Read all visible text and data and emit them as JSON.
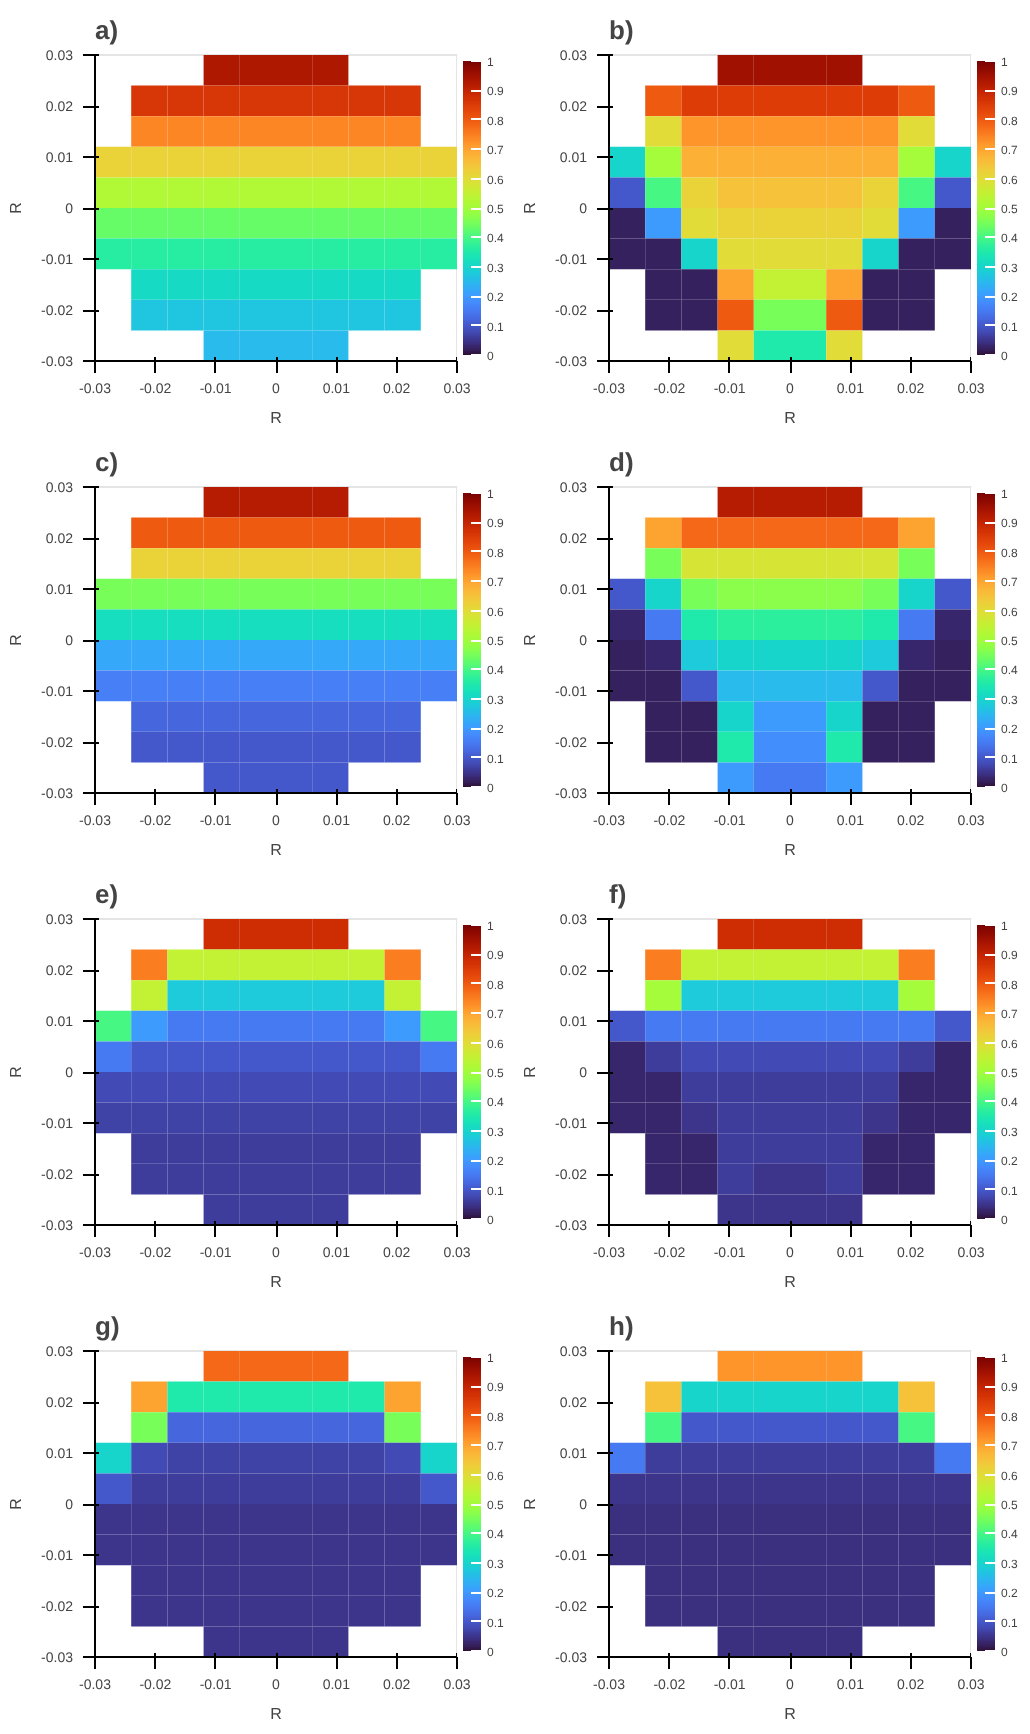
{
  "chart_data": [
    {
      "type": "heatmap",
      "title": "a)",
      "xlabel": "R",
      "ylabel": "R",
      "xlim": [
        -0.03,
        0.03
      ],
      "ylim": [
        -0.03,
        0.03
      ],
      "xticks": [
        -0.03,
        -0.02,
        -0.01,
        0,
        0.01,
        0.02,
        0.03
      ],
      "yticks": [
        -0.03,
        -0.02,
        -0.01,
        0,
        0.01,
        0.02,
        0.03
      ],
      "clim": [
        0,
        1
      ],
      "cticks": [
        0,
        0.1,
        0.2,
        0.3,
        0.4,
        0.5,
        0.6,
        0.7,
        0.8,
        0.9,
        1
      ],
      "grid": false,
      "cells": [
        [
          null,
          null,
          null,
          0.93,
          0.93,
          0.93,
          0.93,
          null,
          null,
          null
        ],
        [
          null,
          0.86,
          0.86,
          0.86,
          0.86,
          0.86,
          0.86,
          0.86,
          0.86,
          null
        ],
        [
          null,
          0.74,
          0.74,
          0.74,
          0.74,
          0.74,
          0.74,
          0.74,
          0.74,
          null
        ],
        [
          0.62,
          0.62,
          0.62,
          0.62,
          0.62,
          0.62,
          0.62,
          0.62,
          0.62,
          0.62
        ],
        [
          0.52,
          0.52,
          0.52,
          0.52,
          0.52,
          0.52,
          0.52,
          0.52,
          0.52,
          0.52
        ],
        [
          0.43,
          0.43,
          0.43,
          0.43,
          0.43,
          0.43,
          0.43,
          0.43,
          0.43,
          0.43
        ],
        [
          0.36,
          0.36,
          0.36,
          0.36,
          0.36,
          0.36,
          0.36,
          0.36,
          0.36,
          0.36
        ],
        [
          null,
          0.31,
          0.31,
          0.31,
          0.31,
          0.31,
          0.31,
          0.31,
          0.31,
          null
        ],
        [
          null,
          0.27,
          0.27,
          0.27,
          0.27,
          0.27,
          0.27,
          0.27,
          0.27,
          null
        ],
        [
          null,
          null,
          null,
          0.25,
          0.25,
          0.25,
          0.25,
          null,
          null,
          null
        ]
      ]
    },
    {
      "type": "heatmap",
      "title": "b)",
      "xlabel": "R",
      "ylabel": "R",
      "xlim": [
        -0.03,
        0.03
      ],
      "ylim": [
        -0.03,
        0.03
      ],
      "xticks": [
        -0.03,
        -0.02,
        -0.01,
        0,
        0.01,
        0.02,
        0.03
      ],
      "yticks": [
        -0.03,
        -0.02,
        -0.01,
        0,
        0.01,
        0.02,
        0.03
      ],
      "clim": [
        0,
        1
      ],
      "cticks": [
        0,
        0.1,
        0.2,
        0.3,
        0.4,
        0.5,
        0.6,
        0.7,
        0.8,
        0.9,
        1
      ],
      "grid": false,
      "cells": [
        [
          null,
          null,
          null,
          0.95,
          0.95,
          0.95,
          0.95,
          null,
          null,
          null
        ],
        [
          null,
          0.8,
          0.85,
          0.85,
          0.85,
          0.85,
          0.85,
          0.85,
          0.8,
          null
        ],
        [
          null,
          0.6,
          0.72,
          0.72,
          0.72,
          0.72,
          0.72,
          0.72,
          0.6,
          null
        ],
        [
          0.3,
          0.5,
          0.68,
          0.68,
          0.68,
          0.68,
          0.68,
          0.68,
          0.5,
          0.3
        ],
        [
          0.1,
          0.4,
          0.62,
          0.65,
          0.65,
          0.65,
          0.65,
          0.62,
          0.4,
          0.1
        ],
        [
          0.02,
          0.2,
          0.6,
          0.62,
          0.62,
          0.62,
          0.62,
          0.6,
          0.2,
          0.02
        ],
        [
          0.02,
          0.02,
          0.3,
          0.6,
          0.6,
          0.6,
          0.6,
          0.3,
          0.02,
          0.02
        ],
        [
          null,
          0.02,
          0.02,
          0.7,
          0.55,
          0.55,
          0.7,
          0.02,
          0.02,
          null
        ],
        [
          null,
          0.02,
          0.02,
          0.8,
          0.45,
          0.45,
          0.8,
          0.02,
          0.02,
          null
        ],
        [
          null,
          null,
          null,
          0.6,
          0.35,
          0.35,
          0.6,
          null,
          null,
          null
        ]
      ]
    },
    {
      "type": "heatmap",
      "title": "c)",
      "xlabel": "R",
      "ylabel": "R",
      "xlim": [
        -0.03,
        0.03
      ],
      "ylim": [
        -0.03,
        0.03
      ],
      "xticks": [
        -0.03,
        -0.02,
        -0.01,
        0,
        0.01,
        0.02,
        0.03
      ],
      "yticks": [
        -0.03,
        -0.02,
        -0.01,
        0,
        0.01,
        0.02,
        0.03
      ],
      "clim": [
        0,
        1
      ],
      "cticks": [
        0,
        0.1,
        0.2,
        0.3,
        0.4,
        0.5,
        0.6,
        0.7,
        0.8,
        0.9,
        1
      ],
      "grid": false,
      "cells": [
        [
          null,
          null,
          null,
          0.92,
          0.92,
          0.92,
          0.92,
          null,
          null,
          null
        ],
        [
          null,
          0.8,
          0.8,
          0.8,
          0.8,
          0.8,
          0.8,
          0.8,
          0.8,
          null
        ],
        [
          null,
          0.62,
          0.62,
          0.62,
          0.62,
          0.62,
          0.62,
          0.62,
          0.62,
          null
        ],
        [
          0.45,
          0.45,
          0.45,
          0.45,
          0.45,
          0.45,
          0.45,
          0.45,
          0.45,
          0.45
        ],
        [
          0.32,
          0.32,
          0.32,
          0.32,
          0.32,
          0.32,
          0.32,
          0.32,
          0.32,
          0.32
        ],
        [
          0.22,
          0.22,
          0.22,
          0.22,
          0.22,
          0.22,
          0.22,
          0.22,
          0.22,
          0.22
        ],
        [
          0.16,
          0.16,
          0.16,
          0.16,
          0.16,
          0.16,
          0.16,
          0.16,
          0.16,
          0.16
        ],
        [
          null,
          0.12,
          0.12,
          0.12,
          0.12,
          0.12,
          0.12,
          0.12,
          0.12,
          null
        ],
        [
          null,
          0.1,
          0.1,
          0.1,
          0.1,
          0.1,
          0.1,
          0.1,
          0.1,
          null
        ],
        [
          null,
          null,
          null,
          0.1,
          0.1,
          0.1,
          0.1,
          null,
          null,
          null
        ]
      ]
    },
    {
      "type": "heatmap",
      "title": "d)",
      "xlabel": "R",
      "ylabel": "R",
      "xlim": [
        -0.03,
        0.03
      ],
      "ylim": [
        -0.03,
        0.03
      ],
      "xticks": [
        -0.03,
        -0.02,
        -0.01,
        0,
        0.01,
        0.02,
        0.03
      ],
      "yticks": [
        -0.03,
        -0.02,
        -0.01,
        0,
        0.01,
        0.02,
        0.03
      ],
      "clim": [
        0,
        1
      ],
      "cticks": [
        0,
        0.1,
        0.2,
        0.3,
        0.4,
        0.5,
        0.6,
        0.7,
        0.8,
        0.9,
        1
      ],
      "grid": false,
      "cells": [
        [
          null,
          null,
          null,
          0.92,
          0.92,
          0.92,
          0.92,
          null,
          null,
          null
        ],
        [
          null,
          0.7,
          0.78,
          0.78,
          0.78,
          0.78,
          0.78,
          0.78,
          0.7,
          null
        ],
        [
          null,
          0.45,
          0.58,
          0.58,
          0.58,
          0.58,
          0.58,
          0.58,
          0.45,
          null
        ],
        [
          0.1,
          0.3,
          0.45,
          0.47,
          0.47,
          0.47,
          0.47,
          0.45,
          0.3,
          0.1
        ],
        [
          0.03,
          0.15,
          0.35,
          0.37,
          0.37,
          0.37,
          0.37,
          0.35,
          0.15,
          0.03
        ],
        [
          0.02,
          0.03,
          0.28,
          0.3,
          0.3,
          0.3,
          0.3,
          0.28,
          0.03,
          0.02
        ],
        [
          0.02,
          0.02,
          0.1,
          0.25,
          0.25,
          0.25,
          0.25,
          0.1,
          0.02,
          0.02
        ],
        [
          null,
          0.02,
          0.02,
          0.3,
          0.2,
          0.2,
          0.3,
          0.02,
          0.02,
          null
        ],
        [
          null,
          0.02,
          0.02,
          0.35,
          0.18,
          0.18,
          0.35,
          0.02,
          0.02,
          null
        ],
        [
          null,
          null,
          null,
          0.2,
          0.15,
          0.15,
          0.2,
          null,
          null,
          null
        ]
      ]
    },
    {
      "type": "heatmap",
      "title": "e)",
      "xlabel": "R",
      "ylabel": "R",
      "xlim": [
        -0.03,
        0.03
      ],
      "ylim": [
        -0.03,
        0.03
      ],
      "xticks": [
        -0.03,
        -0.02,
        -0.01,
        0,
        0.01,
        0.02,
        0.03
      ],
      "yticks": [
        -0.03,
        -0.02,
        -0.01,
        0,
        0.01,
        0.02,
        0.03
      ],
      "clim": [
        0,
        1
      ],
      "cticks": [
        0,
        0.1,
        0.2,
        0.3,
        0.4,
        0.5,
        0.6,
        0.7,
        0.8,
        0.9,
        1
      ],
      "grid": false,
      "cells": [
        [
          null,
          null,
          null,
          0.88,
          0.88,
          0.88,
          0.88,
          null,
          null,
          null
        ],
        [
          null,
          0.75,
          0.55,
          0.55,
          0.55,
          0.55,
          0.55,
          0.55,
          0.75,
          null
        ],
        [
          null,
          0.55,
          0.28,
          0.28,
          0.28,
          0.28,
          0.28,
          0.28,
          0.55,
          null
        ],
        [
          0.4,
          0.2,
          0.15,
          0.15,
          0.15,
          0.15,
          0.15,
          0.15,
          0.2,
          0.4
        ],
        [
          0.15,
          0.1,
          0.1,
          0.1,
          0.1,
          0.1,
          0.1,
          0.1,
          0.1,
          0.15
        ],
        [
          0.08,
          0.08,
          0.08,
          0.08,
          0.08,
          0.08,
          0.08,
          0.08,
          0.08,
          0.08
        ],
        [
          0.07,
          0.07,
          0.07,
          0.07,
          0.07,
          0.07,
          0.07,
          0.07,
          0.07,
          0.07
        ],
        [
          null,
          0.06,
          0.06,
          0.06,
          0.06,
          0.06,
          0.06,
          0.06,
          0.06,
          null
        ],
        [
          null,
          0.06,
          0.06,
          0.06,
          0.06,
          0.06,
          0.06,
          0.06,
          0.06,
          null
        ],
        [
          null,
          null,
          null,
          0.06,
          0.06,
          0.06,
          0.06,
          null,
          null,
          null
        ]
      ]
    },
    {
      "type": "heatmap",
      "title": "f)",
      "xlabel": "R",
      "ylabel": "R",
      "xlim": [
        -0.03,
        0.03
      ],
      "ylim": [
        -0.03,
        0.03
      ],
      "xticks": [
        -0.03,
        -0.02,
        -0.01,
        0,
        0.01,
        0.02,
        0.03
      ],
      "yticks": [
        -0.03,
        -0.02,
        -0.01,
        0,
        0.01,
        0.02,
        0.03
      ],
      "clim": [
        0,
        1
      ],
      "cticks": [
        0,
        0.1,
        0.2,
        0.3,
        0.4,
        0.5,
        0.6,
        0.7,
        0.8,
        0.9,
        1
      ],
      "grid": false,
      "cells": [
        [
          null,
          null,
          null,
          0.88,
          0.88,
          0.88,
          0.88,
          null,
          null,
          null
        ],
        [
          null,
          0.75,
          0.55,
          0.55,
          0.55,
          0.55,
          0.55,
          0.55,
          0.75,
          null
        ],
        [
          null,
          0.5,
          0.28,
          0.28,
          0.28,
          0.28,
          0.28,
          0.28,
          0.5,
          null
        ],
        [
          0.1,
          0.15,
          0.15,
          0.15,
          0.15,
          0.15,
          0.15,
          0.15,
          0.15,
          0.1
        ],
        [
          0.03,
          0.06,
          0.08,
          0.08,
          0.08,
          0.08,
          0.08,
          0.08,
          0.06,
          0.03
        ],
        [
          0.03,
          0.03,
          0.06,
          0.06,
          0.06,
          0.06,
          0.06,
          0.06,
          0.03,
          0.03
        ],
        [
          0.03,
          0.03,
          0.05,
          0.06,
          0.06,
          0.06,
          0.06,
          0.05,
          0.03,
          0.03
        ],
        [
          null,
          0.03,
          0.03,
          0.06,
          0.06,
          0.06,
          0.06,
          0.03,
          0.03,
          null
        ],
        [
          null,
          0.03,
          0.03,
          0.06,
          0.05,
          0.05,
          0.06,
          0.03,
          0.03,
          null
        ],
        [
          null,
          null,
          null,
          0.05,
          0.05,
          0.05,
          0.05,
          null,
          null,
          null
        ]
      ]
    },
    {
      "type": "heatmap",
      "title": "g)",
      "xlabel": "R",
      "ylabel": "R",
      "xlim": [
        -0.03,
        0.03
      ],
      "ylim": [
        -0.03,
        0.03
      ],
      "xticks": [
        -0.03,
        -0.02,
        -0.01,
        0,
        0.01,
        0.02,
        0.03
      ],
      "yticks": [
        -0.03,
        -0.02,
        -0.01,
        0,
        0.01,
        0.02,
        0.03
      ],
      "clim": [
        0,
        1
      ],
      "cticks": [
        0,
        0.1,
        0.2,
        0.3,
        0.4,
        0.5,
        0.6,
        0.7,
        0.8,
        0.9,
        1
      ],
      "grid": false,
      "cells": [
        [
          null,
          null,
          null,
          0.78,
          0.78,
          0.78,
          0.78,
          null,
          null,
          null
        ],
        [
          null,
          0.7,
          0.35,
          0.35,
          0.35,
          0.35,
          0.35,
          0.35,
          0.7,
          null
        ],
        [
          null,
          0.45,
          0.12,
          0.12,
          0.12,
          0.12,
          0.12,
          0.12,
          0.45,
          null
        ],
        [
          0.3,
          0.08,
          0.07,
          0.07,
          0.07,
          0.07,
          0.07,
          0.07,
          0.08,
          0.3
        ],
        [
          0.1,
          0.06,
          0.06,
          0.06,
          0.06,
          0.06,
          0.06,
          0.06,
          0.06,
          0.1
        ],
        [
          0.05,
          0.05,
          0.05,
          0.05,
          0.05,
          0.05,
          0.05,
          0.05,
          0.05,
          0.05
        ],
        [
          0.05,
          0.05,
          0.05,
          0.05,
          0.05,
          0.05,
          0.05,
          0.05,
          0.05,
          0.05
        ],
        [
          null,
          0.05,
          0.05,
          0.05,
          0.05,
          0.05,
          0.05,
          0.05,
          0.05,
          null
        ],
        [
          null,
          0.05,
          0.05,
          0.05,
          0.05,
          0.05,
          0.05,
          0.05,
          0.05,
          null
        ],
        [
          null,
          null,
          null,
          0.05,
          0.05,
          0.05,
          0.05,
          null,
          null,
          null
        ]
      ]
    },
    {
      "type": "heatmap",
      "title": "h)",
      "xlabel": "R",
      "ylabel": "R",
      "xlim": [
        -0.03,
        0.03
      ],
      "ylim": [
        -0.03,
        0.03
      ],
      "xticks": [
        -0.03,
        -0.02,
        -0.01,
        0,
        0.01,
        0.02,
        0.03
      ],
      "yticks": [
        -0.03,
        -0.02,
        -0.01,
        0,
        0.01,
        0.02,
        0.03
      ],
      "clim": [
        0,
        1
      ],
      "cticks": [
        0,
        0.1,
        0.2,
        0.3,
        0.4,
        0.5,
        0.6,
        0.7,
        0.8,
        0.9,
        1
      ],
      "grid": false,
      "cells": [
        [
          null,
          null,
          null,
          0.72,
          0.72,
          0.72,
          0.72,
          null,
          null,
          null
        ],
        [
          null,
          0.65,
          0.3,
          0.3,
          0.3,
          0.3,
          0.3,
          0.3,
          0.65,
          null
        ],
        [
          null,
          0.4,
          0.1,
          0.1,
          0.1,
          0.1,
          0.1,
          0.1,
          0.4,
          null
        ],
        [
          0.15,
          0.06,
          0.06,
          0.06,
          0.06,
          0.06,
          0.06,
          0.06,
          0.06,
          0.15
        ],
        [
          0.05,
          0.05,
          0.05,
          0.05,
          0.05,
          0.05,
          0.05,
          0.05,
          0.05,
          0.05
        ],
        [
          0.04,
          0.04,
          0.04,
          0.04,
          0.04,
          0.04,
          0.04,
          0.04,
          0.04,
          0.04
        ],
        [
          0.04,
          0.04,
          0.04,
          0.04,
          0.04,
          0.04,
          0.04,
          0.04,
          0.04,
          0.04
        ],
        [
          null,
          0.04,
          0.04,
          0.04,
          0.04,
          0.04,
          0.04,
          0.04,
          0.04,
          null
        ],
        [
          null,
          0.04,
          0.04,
          0.04,
          0.04,
          0.04,
          0.04,
          0.04,
          0.04,
          null
        ],
        [
          null,
          null,
          null,
          0.04,
          0.04,
          0.04,
          0.04,
          null,
          null,
          null
        ]
      ]
    }
  ]
}
